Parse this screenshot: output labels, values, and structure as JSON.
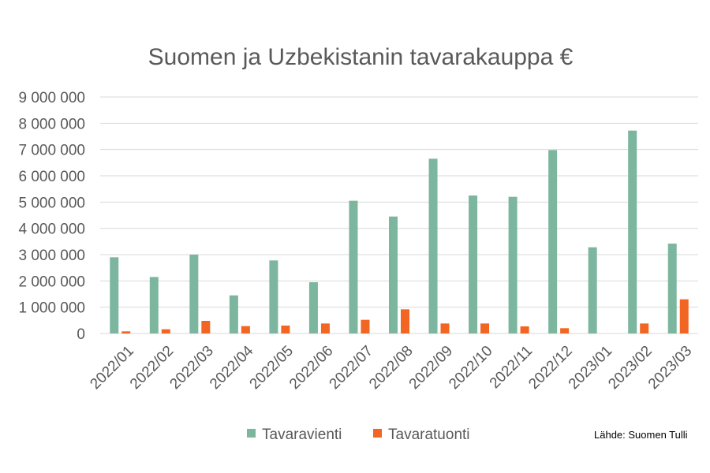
{
  "chart_data": {
    "type": "bar",
    "title": "Suomen ja Uzbekistanin tavarakauppa €",
    "xlabel": "",
    "ylabel": "",
    "categories": [
      "2022/01",
      "2022/02",
      "2022/03",
      "2022/04",
      "2022/05",
      "2022/06",
      "2022/07",
      "2022/08",
      "2022/09",
      "2022/10",
      "2022/11",
      "2022/12",
      "2023/01",
      "2023/02",
      "2023/03"
    ],
    "series": [
      {
        "name": "Tavaravienti",
        "color": "#7cb69f",
        "values": [
          2900000,
          2150000,
          3000000,
          1450000,
          2780000,
          1950000,
          5050000,
          4450000,
          6650000,
          5250000,
          5200000,
          6980000,
          3280000,
          7720000,
          3420000
        ]
      },
      {
        "name": "Tavaratuonti",
        "color": "#f26522",
        "values": [
          80000,
          160000,
          480000,
          280000,
          300000,
          380000,
          520000,
          920000,
          380000,
          380000,
          270000,
          200000,
          0,
          380000,
          1300000
        ]
      }
    ],
    "ylim": [
      0,
      9000000
    ],
    "yticks": [
      0,
      1000000,
      2000000,
      3000000,
      4000000,
      5000000,
      6000000,
      7000000,
      8000000,
      9000000
    ],
    "ytick_labels": [
      "0",
      "1 000 000",
      "2 000 000",
      "3 000 000",
      "4 000 000",
      "5 000 000",
      "6 000 000",
      "7 000 000",
      "8 000 000",
      "9 000 000"
    ],
    "grid": true,
    "legend_position": "bottom",
    "source": "Lähde: Suomen Tulli"
  }
}
